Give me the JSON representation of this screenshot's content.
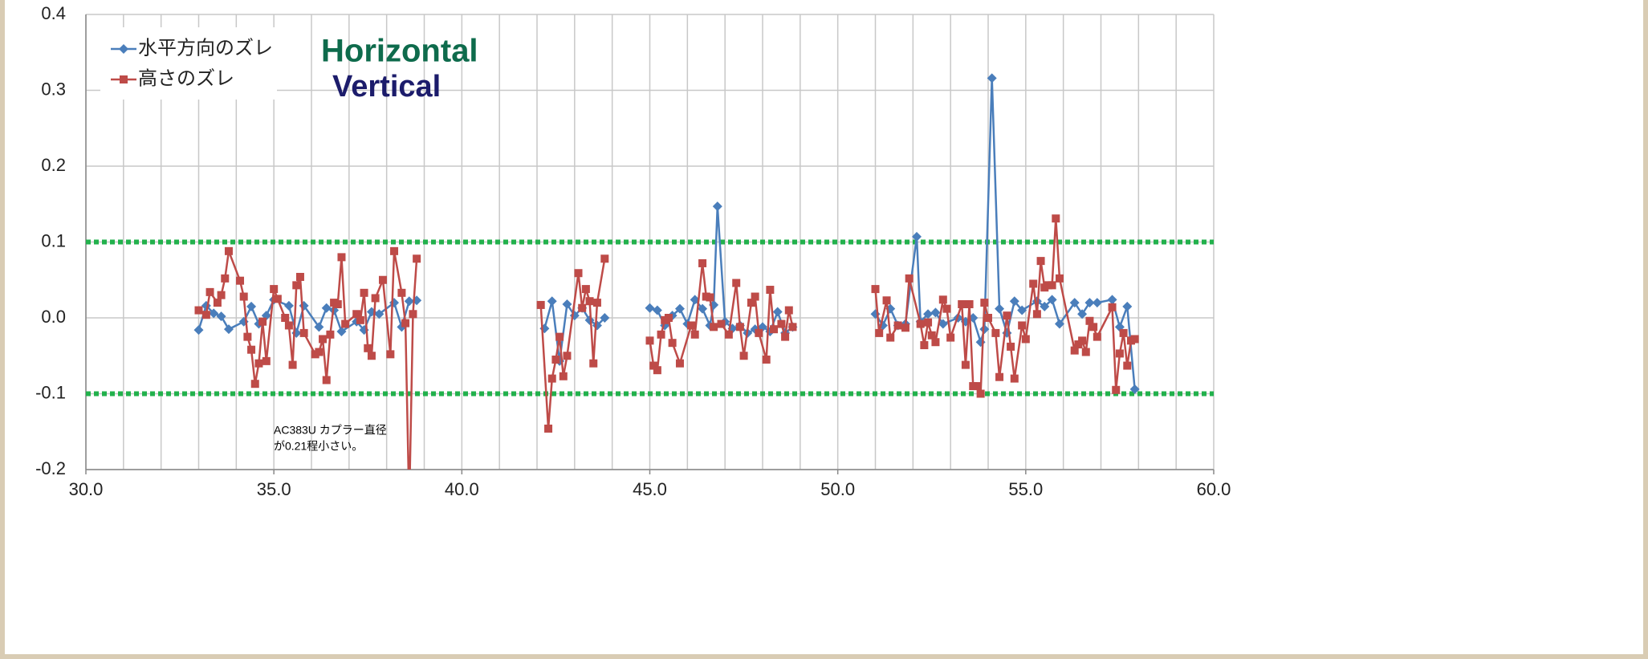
{
  "chart_data": {
    "type": "line",
    "xlim": [
      30,
      60
    ],
    "ylim": [
      -0.2,
      0.4
    ],
    "xticks": [
      {
        "value": 30,
        "label": "30.0"
      },
      {
        "value": 35,
        "label": "35.0"
      },
      {
        "value": 40,
        "label": "40.0"
      },
      {
        "value": 45,
        "label": "45.0"
      },
      {
        "value": 50,
        "label": "50.0"
      },
      {
        "value": 55,
        "label": "55.0"
      },
      {
        "value": 60,
        "label": "60.0"
      }
    ],
    "yticks": [
      -0.2,
      -0.1,
      {
        "value": 0,
        "label": "0.0"
      },
      0.1,
      0.2,
      0.3,
      0.4
    ],
    "x_gridlines": [
      30,
      31,
      32,
      33,
      34,
      35,
      36,
      37,
      38,
      39,
      40,
      41,
      42,
      43,
      44,
      45,
      46,
      47,
      48,
      49,
      50,
      51,
      52,
      53,
      54,
      55,
      56,
      57,
      58,
      59,
      60
    ],
    "grid": true,
    "legend": "upper left",
    "reference_lines": {
      "color": "#22b14c",
      "values": [
        0.1,
        -0.1
      ]
    },
    "annotations": [
      {
        "text": "Horizontal",
        "color": "#0e6b4c"
      },
      {
        "text": "Vertical",
        "color": "#1c1c6b"
      },
      {
        "text": [
          "AC383U カプラー直径",
          "が0.21程小さい。"
        ],
        "color": "#000000"
      }
    ],
    "series": [
      {
        "name": "水平方向のズレ",
        "color": "#4a7ebb",
        "marker": "diamond",
        "x": [
          33.0,
          33.2,
          33.4,
          33.6,
          33.8,
          34.2,
          34.4,
          34.6,
          34.8,
          35.0,
          35.4,
          35.6,
          35.8,
          36.2,
          36.4,
          36.6,
          36.8,
          37.2,
          37.4,
          37.6,
          37.8,
          38.2,
          38.4,
          38.6,
          38.8,
          null,
          42.2,
          42.4,
          42.6,
          42.8,
          43.0,
          43.2,
          43.4,
          43.6,
          43.8,
          null,
          45.0,
          45.2,
          45.4,
          45.6,
          45.8,
          46.0,
          46.2,
          46.4,
          46.6,
          46.7,
          46.8,
          47.0,
          47.2,
          47.4,
          47.6,
          47.8,
          48.0,
          48.2,
          48.4,
          48.6,
          48.8,
          null,
          51.0,
          51.2,
          51.4,
          51.6,
          51.8,
          52.1,
          52.2,
          52.4,
          52.6,
          52.8,
          53.2,
          53.4,
          53.6,
          53.8,
          53.9,
          54.1,
          54.3,
          54.5,
          54.7,
          54.9,
          55.3,
          55.5,
          55.7,
          55.9,
          56.3,
          56.5,
          56.7,
          56.9,
          57.3,
          57.5,
          57.7,
          57.9
        ],
        "values": [
          -0.016,
          0.016,
          0.006,
          0.002,
          -0.015,
          -0.005,
          0.015,
          -0.008,
          0.003,
          0.024,
          0.016,
          -0.02,
          0.016,
          -0.012,
          0.013,
          0.01,
          -0.018,
          -0.005,
          -0.016,
          0.008,
          0.005,
          0.02,
          -0.012,
          0.022,
          0.023,
          null,
          -0.014,
          0.022,
          -0.057,
          0.018,
          0.003,
          0.013,
          -0.003,
          -0.01,
          0.0,
          null,
          0.013,
          0.01,
          -0.01,
          0.003,
          0.012,
          -0.008,
          0.024,
          0.012,
          -0.01,
          0.017,
          0.147,
          -0.005,
          -0.014,
          -0.01,
          -0.02,
          -0.015,
          -0.012,
          -0.018,
          0.008,
          -0.02,
          -0.012,
          null,
          0.005,
          -0.01,
          0.012,
          -0.01,
          -0.008,
          0.107,
          -0.005,
          0.005,
          0.007,
          -0.008,
          0.0,
          -0.005,
          0.0,
          -0.032,
          -0.015,
          0.316,
          0.012,
          -0.02,
          0.022,
          0.01,
          0.022,
          0.015,
          0.024,
          -0.008,
          0.02,
          0.005,
          0.02,
          0.02,
          0.024,
          -0.012,
          0.015,
          -0.094
        ]
      },
      {
        "name": "高さのズレ",
        "color": "#be4b48",
        "marker": "square",
        "x": [
          33.0,
          33.2,
          33.3,
          33.5,
          33.6,
          33.7,
          33.8,
          34.1,
          34.2,
          34.3,
          34.4,
          34.5,
          34.6,
          34.7,
          34.8,
          35.0,
          35.1,
          35.3,
          35.4,
          35.5,
          35.6,
          35.7,
          35.8,
          36.1,
          36.2,
          36.3,
          36.4,
          36.5,
          36.6,
          36.7,
          36.8,
          36.9,
          37.2,
          37.3,
          37.4,
          37.5,
          37.6,
          37.7,
          37.9,
          38.1,
          38.2,
          38.4,
          38.5,
          38.6,
          38.7,
          38.8,
          null,
          42.1,
          42.3,
          42.4,
          42.5,
          42.6,
          42.7,
          42.8,
          43.1,
          43.2,
          43.3,
          43.4,
          43.5,
          43.6,
          43.8,
          null,
          45.0,
          45.1,
          45.2,
          45.3,
          45.4,
          45.5,
          45.6,
          45.8,
          46.1,
          46.2,
          46.4,
          46.5,
          46.6,
          46.7,
          46.9,
          47.1,
          47.3,
          47.4,
          47.5,
          47.7,
          47.8,
          47.9,
          48.1,
          48.2,
          48.3,
          48.5,
          48.6,
          48.7,
          48.8,
          null,
          51.0,
          51.1,
          51.3,
          51.4,
          51.6,
          51.8,
          51.9,
          52.2,
          52.3,
          52.4,
          52.5,
          52.6,
          52.8,
          52.9,
          53.0,
          53.3,
          53.4,
          53.5,
          53.6,
          53.7,
          53.8,
          53.9,
          54.0,
          54.2,
          54.3,
          54.5,
          54.6,
          54.7,
          54.9,
          55.0,
          55.2,
          55.3,
          55.4,
          55.5,
          55.6,
          55.7,
          55.8,
          55.9,
          56.3,
          56.4,
          56.5,
          56.6,
          56.7,
          56.8,
          56.9,
          57.3,
          57.4,
          57.5,
          57.6,
          57.7,
          57.8,
          57.9
        ],
        "values": [
          0.01,
          0.004,
          0.034,
          0.02,
          0.03,
          0.052,
          0.088,
          0.049,
          0.028,
          -0.025,
          -0.042,
          -0.087,
          -0.06,
          -0.005,
          -0.057,
          0.038,
          0.025,
          0.0,
          -0.01,
          -0.062,
          0.043,
          0.054,
          -0.02,
          -0.048,
          -0.045,
          -0.028,
          -0.082,
          -0.022,
          0.02,
          0.018,
          0.08,
          -0.008,
          0.005,
          -0.003,
          0.033,
          -0.04,
          -0.05,
          0.026,
          0.05,
          -0.048,
          0.088,
          0.033,
          -0.007,
          -0.25,
          0.005,
          0.078,
          null,
          0.017,
          -0.146,
          -0.08,
          -0.055,
          -0.025,
          -0.077,
          -0.05,
          0.059,
          0.013,
          0.038,
          0.022,
          -0.06,
          0.02,
          0.078,
          null,
          -0.03,
          -0.063,
          -0.069,
          -0.022,
          -0.003,
          0.0,
          -0.033,
          -0.06,
          -0.01,
          -0.022,
          0.072,
          0.028,
          0.027,
          -0.012,
          -0.008,
          -0.022,
          0.046,
          -0.012,
          -0.05,
          0.02,
          0.028,
          -0.02,
          -0.055,
          0.037,
          -0.015,
          -0.008,
          -0.025,
          0.01,
          -0.012,
          null,
          0.038,
          -0.02,
          0.023,
          -0.026,
          -0.01,
          -0.013,
          0.052,
          -0.008,
          -0.036,
          -0.006,
          -0.023,
          -0.032,
          0.024,
          0.012,
          -0.026,
          0.018,
          -0.062,
          0.018,
          -0.09,
          -0.09,
          -0.1,
          0.02,
          0.0,
          -0.02,
          -0.078,
          0.003,
          -0.038,
          -0.08,
          -0.01,
          -0.028,
          0.045,
          0.005,
          0.075,
          0.04,
          0.043,
          0.043,
          0.131,
          0.052,
          -0.043,
          -0.035,
          -0.03,
          -0.045,
          -0.004,
          -0.012,
          -0.025,
          0.014,
          -0.095,
          -0.047,
          -0.02,
          -0.063,
          -0.03,
          -0.028
        ]
      }
    ]
  }
}
